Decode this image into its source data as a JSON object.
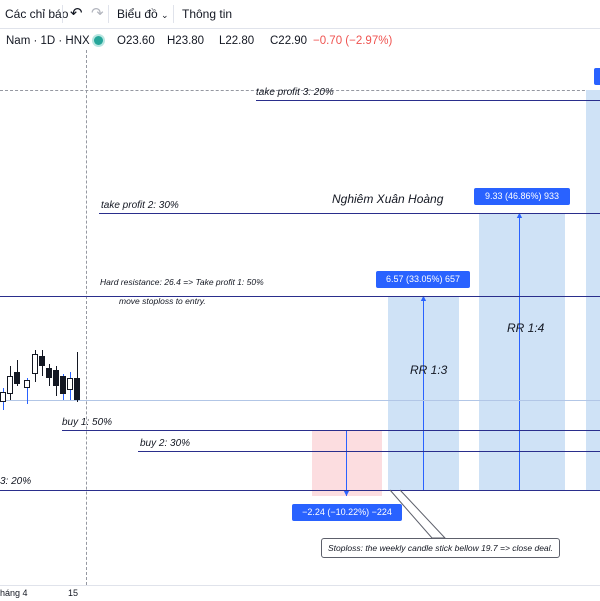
{
  "toolbar": {
    "indicators_label": "Các chỉ báo",
    "chart_type_label": "Biểu đồ",
    "info_label": "Thông tin"
  },
  "legend": {
    "symbol": "Nam · 1D · HNX",
    "open": "O23.60",
    "high": "H23.80",
    "low": "L22.80",
    "close": "C22.90",
    "change": "−0.70 (−2.97%)",
    "change_color": "#ef5350",
    "status_color": "#26a69a"
  },
  "annotations": {
    "take_profit_3": "take profit 3: 20%",
    "take_profit_2": "take profit 2: 30%",
    "author": "Nghiêm Xuân Hoàng",
    "hard_resistance": "Hard resistance: 26.4  => Take profit 1: 50%",
    "move_stoploss": "move stoploss to entry.",
    "buy_1": "buy 1: 50%",
    "buy_2": "buy 2: 30%",
    "buy_3": "3: 20%",
    "rr_1_3": "RR 1:3",
    "rr_1_4": "RR 1:4",
    "stoploss_note": "Stoploss: the weekly candle stick bellow 19.7 => close deal."
  },
  "badges": {
    "profit_1": "6.57 (33.05%) 657",
    "profit_2": "9.33 (46.86%) 933",
    "loss": "−2.24 (−10.22%) −224"
  },
  "axis": {
    "month_label": "háng 4",
    "day_label": "15"
  },
  "colors": {
    "line": "#2a2e8c",
    "profit_zone": "#cfe2f6",
    "loss_zone": "#fcdde0",
    "badge": "#2962ff"
  }
}
